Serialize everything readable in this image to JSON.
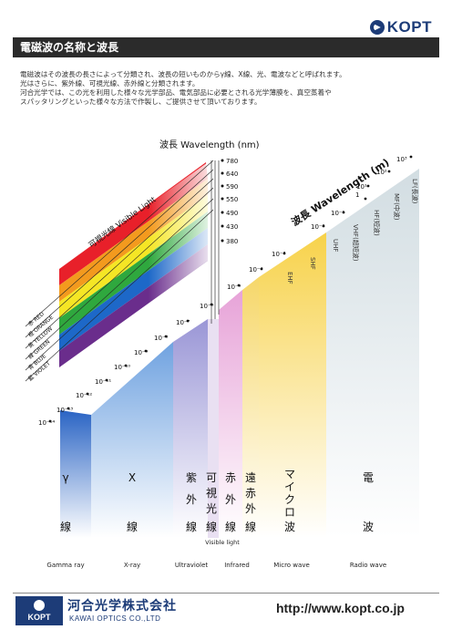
{
  "brand": {
    "logo_text": "KOPT"
  },
  "header": {
    "title": "電磁波の名称と波長"
  },
  "intro": {
    "lines": [
      "電磁波はその波長の長さによって分類され、波長の短いものからγ線、X線、光、電波などと呼ばれます。",
      "光はさらに、紫外線、可視光線、赤外線と分類されます。",
      "河合光学では、この光を利用した様々な光学部品、電気部品に必要とされる光学薄膜を、真空蒸着や",
      "スパッタリングといった様々な方法で作製し、ご提供させて頂いております。"
    ]
  },
  "visible_axis": {
    "title": "波長  Wavelength (nm)",
    "ticks": [
      "780",
      "640",
      "590",
      "550",
      "490",
      "430",
      "380"
    ]
  },
  "visible_band": {
    "label": "可視光線  Visible Light",
    "colors": [
      {
        "name": "赤 RED",
        "hex": "#e8202a"
      },
      {
        "name": "橙 ORANGE",
        "hex": "#f39a1e"
      },
      {
        "name": "黄 YELLOW",
        "hex": "#f5e625"
      },
      {
        "name": "緑 GREEN",
        "hex": "#2fa83e"
      },
      {
        "name": "青 BLUE",
        "hex": "#1d68c8"
      },
      {
        "name": "藍 VIOLET",
        "hex": "#6a2d8c"
      }
    ]
  },
  "main_axis": {
    "title": "波長  Wavelength (m)",
    "ticks": [
      "10⁻¹⁴",
      "10⁻¹³",
      "10⁻¹²",
      "10⁻¹¹",
      "10⁻¹⁰",
      "10⁻⁹",
      "10⁻⁸",
      "10⁻⁷",
      "10⁻⁶",
      "10⁻⁵",
      "10⁻⁴",
      "10⁻³",
      "10⁻²",
      "10⁻¹",
      "1",
      "10¹",
      "10²",
      "10³"
    ]
  },
  "radio_sub": [
    "EHF",
    "SHF",
    "UHF",
    "VHF(超短波)",
    "HF(短波)",
    "MF(中波)",
    "LF(長波)"
  ],
  "columns": [
    {
      "ja": [
        "γ",
        "線"
      ],
      "en": "Gamma ray"
    },
    {
      "ja": [
        "X",
        "線"
      ],
      "en": "X-ray"
    },
    {
      "ja": [
        "紫",
        "外",
        "線"
      ],
      "en": "Ultraviolet"
    },
    {
      "ja": [
        "可",
        "視",
        "光",
        "線"
      ],
      "en": "Visible light"
    },
    {
      "ja": [
        "赤",
        "外",
        "線"
      ],
      "en": "Infrared"
    },
    {
      "ja": [
        "遠",
        "赤",
        "外",
        "線"
      ],
      "en": ""
    },
    {
      "ja": [
        "マ",
        "イ",
        "ク",
        "ロ",
        "波"
      ],
      "en": "Micro wave"
    },
    {
      "ja": [
        "電",
        "波"
      ],
      "en": "Radio wave"
    }
  ],
  "footer": {
    "logo_text": "KOPT",
    "company_ja": "河合光学株式会社",
    "company_en": "KAWAI OPTICS CO.,LTD",
    "url": "http://www.kopt.co.jp"
  }
}
